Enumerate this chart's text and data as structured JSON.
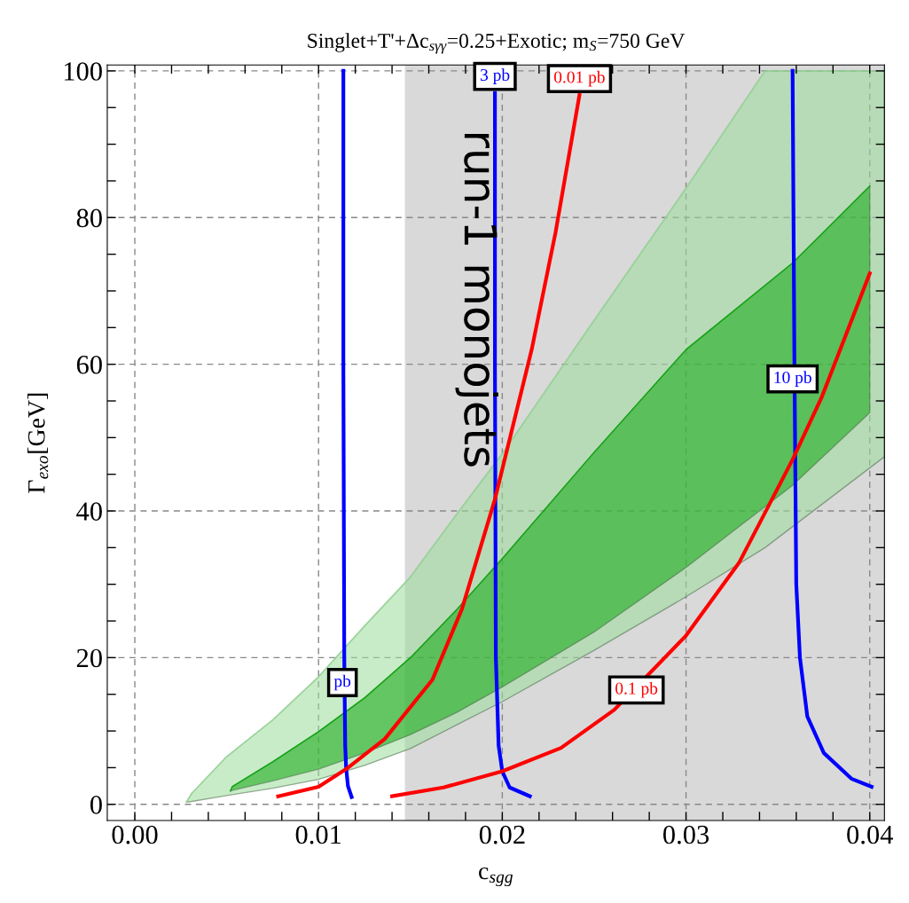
{
  "chart_data": {
    "type": "line",
    "title": "Singlet+T'+Δc$_{sγγ}$=0.25+Exotic; m$_{S}$=750 GeV",
    "xlabel": "c$_{sgg}$",
    "ylabel": "Γ$_{exo}$[GeV]",
    "xlim": [
      -0.0015,
      0.0408
    ],
    "ylim": [
      -2.2,
      100.8
    ],
    "xticks": [
      {
        "value": 0,
        "label": "0.00"
      },
      {
        "value": 0.002,
        "label": null
      },
      {
        "value": 0.004,
        "label": null
      },
      {
        "value": 0.006,
        "label": null
      },
      {
        "value": 0.008,
        "label": null
      },
      {
        "value": 0.01,
        "label": "0.01"
      },
      {
        "value": 0.012,
        "label": null
      },
      {
        "value": 0.014,
        "label": null
      },
      {
        "value": 0.016,
        "label": null
      },
      {
        "value": 0.018,
        "label": null
      },
      {
        "value": 0.02,
        "label": "0.02"
      },
      {
        "value": 0.022,
        "label": null
      },
      {
        "value": 0.024,
        "label": null
      },
      {
        "value": 0.026,
        "label": null
      },
      {
        "value": 0.028,
        "label": null
      },
      {
        "value": 0.03,
        "label": "0.03"
      },
      {
        "value": 0.032,
        "label": null
      },
      {
        "value": 0.034,
        "label": null
      },
      {
        "value": 0.036,
        "label": null
      },
      {
        "value": 0.038,
        "label": null
      },
      {
        "value": 0.04,
        "label": "0.04"
      }
    ],
    "yticks": [
      0,
      {
        "value": 5,
        "label": null
      },
      {
        "value": 10,
        "label": null
      },
      {
        "value": 15,
        "label": null
      },
      20,
      {
        "value": 25,
        "label": null
      },
      {
        "value": 30,
        "label": null
      },
      {
        "value": 35,
        "label": null
      },
      40,
      {
        "value": 45,
        "label": null
      },
      {
        "value": 50,
        "label": null
      },
      {
        "value": 55,
        "label": null
      },
      60,
      {
        "value": 65,
        "label": null
      },
      {
        "value": 70,
        "label": null
      },
      {
        "value": 75,
        "label": null
      },
      80,
      {
        "value": 85,
        "label": null
      },
      {
        "value": 90,
        "label": null
      },
      {
        "value": 95,
        "label": null
      },
      100
    ],
    "grid": true,
    "line_style": "solid",
    "marker": "none",
    "bands": [
      {
        "axis": "x",
        "from": 0.0147,
        "to": 0.0408,
        "label": "run-1 monojets",
        "color": "#d9d9d9"
      }
    ],
    "series": [
      {
        "color": "#9bdc9b",
        "x": [
          0.0028,
          0.0031,
          0.005,
          0.0075,
          0.01,
          0.0125,
          0.015,
          0.0175,
          0.02,
          0.025,
          0.03,
          0.0343,
          0.0408
        ],
        "values": [
          0.3,
          1.5,
          6.5,
          11.5,
          17.4,
          24.3,
          31.0,
          39.5,
          47.8,
          66,
          84,
          100,
          100
        ],
        "upper": [
          0.3,
          1.5,
          6.5,
          11.5,
          17.4,
          24.3,
          31.0,
          39.5,
          47.8,
          66,
          84,
          100,
          100
        ],
        "lower": [
          0.3,
          0.4,
          1.2,
          2.2,
          3.4,
          5.3,
          7.6,
          10.8,
          14,
          21,
          28.3,
          35,
          47.4
        ]
      },
      {
        "color": "#10a810",
        "x": [
          0.0052,
          0.0053,
          0.0075,
          0.01,
          0.0125,
          0.015,
          0.0175,
          0.02,
          0.025,
          0.03,
          0.0358,
          0.04
        ],
        "values": [
          1.8,
          2.4,
          5.8,
          9.9,
          14.5,
          20,
          26.5,
          33.5,
          48,
          62,
          73.8,
          84.3
        ],
        "upper": [
          1.8,
          2.4,
          5.8,
          9.9,
          14.5,
          20,
          26.5,
          33.5,
          48,
          62,
          73.8,
          84.3
        ],
        "lower": [
          1.8,
          1.9,
          3.2,
          4.8,
          7.0,
          9.5,
          12.5,
          16,
          23.5,
          32.3,
          43.5,
          53.4
        ]
      },
      {
        "color": "#0000ff",
        "x": [
          0.01135,
          0.01135,
          0.0114,
          0.01145,
          0.0115,
          0.0116,
          0.0118
        ],
        "values": [
          100,
          60,
          20,
          8,
          5,
          2.5,
          1
        ]
      },
      {
        "color": "#0000ff",
        "x": [
          0.0196,
          0.0196,
          0.01965,
          0.0198,
          0.02,
          0.0204,
          0.0215
        ],
        "values": [
          97,
          60,
          20,
          8,
          4.5,
          2.3,
          1.1
        ]
      },
      {
        "color": "#0000ff",
        "x": [
          0.0358,
          0.0359,
          0.036,
          0.0362,
          0.0366,
          0.0375,
          0.039,
          0.0401
        ],
        "values": [
          100,
          60,
          30,
          20,
          12,
          7,
          3.5,
          2.4
        ]
      },
      {
        "color": "#ff0000",
        "x": [
          0.0078,
          0.01,
          0.0115,
          0.0136,
          0.0162,
          0.0178,
          0.0196,
          0.0205,
          0.0216,
          0.0229,
          0.0242
        ],
        "values": [
          1.1,
          2.4,
          4.8,
          8.9,
          17,
          26.6,
          41.6,
          50.8,
          62,
          78,
          96.7
        ]
      },
      {
        "color": "#ff0000",
        "x": [
          0.014,
          0.0168,
          0.02,
          0.0232,
          0.0261,
          0.03,
          0.0329,
          0.0358,
          0.0374,
          0.04
        ],
        "values": [
          1.1,
          2.3,
          4.5,
          7.7,
          12.9,
          23,
          33,
          47,
          55.6,
          72.4
        ]
      }
    ],
    "annotations": [
      {
        "text": "pb",
        "x": 0.0113,
        "y": 16.6
      },
      {
        "text": "3 pb",
        "x": 0.0196,
        "y": 97
      },
      {
        "text": "0.01 pb",
        "x": 0.0242,
        "y": 96.7
      },
      {
        "text": "10 pb",
        "x": 0.0358,
        "y": 58
      },
      {
        "text": "0.1 pb",
        "x": 0.0273,
        "y": 15.6
      }
    ]
  }
}
